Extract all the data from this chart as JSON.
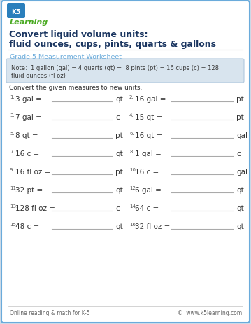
{
  "title_line1": "Convert liquid volume units:",
  "title_line2": "fluid ounces, cups, pints, quarts & gallons",
  "subtitle": "Grade 5 Measurement Worksheet",
  "note_line1": "Note:  1 gallon (gal) = 4 quarts (qt) =  8 pints (pt) = 16 cups (c) = 128",
  "note_line2": "fluid ounces (fl oz)",
  "instruction": "Convert the given measures to new units.",
  "problems": [
    {
      "num": "1.",
      "left": "3 gal =",
      "unit": "qt"
    },
    {
      "num": "2.",
      "left": "16 gal =",
      "unit": "pt"
    },
    {
      "num": "3.",
      "left": "7 gal =",
      "unit": "c"
    },
    {
      "num": "4.",
      "left": "15 qt =",
      "unit": "pt"
    },
    {
      "num": "5.",
      "left": "8 qt =",
      "unit": "pt"
    },
    {
      "num": "6.",
      "left": "16 qt =",
      "unit": "gal"
    },
    {
      "num": "7.",
      "left": "16 c =",
      "unit": "qt"
    },
    {
      "num": "8.",
      "left": "1 gal =",
      "unit": "c"
    },
    {
      "num": "9.",
      "left": "16 fl oz =",
      "unit": "pt"
    },
    {
      "num": "10.",
      "left": "16 c =",
      "unit": "gal"
    },
    {
      "num": "11.",
      "left": "32 pt =",
      "unit": "qt"
    },
    {
      "num": "12.",
      "left": "6 gal =",
      "unit": "qt"
    },
    {
      "num": "13.",
      "left": "128 fl oz =",
      "unit": "c"
    },
    {
      "num": "14.",
      "left": "64 c =",
      "unit": "qt"
    },
    {
      "num": "15.",
      "left": "48 c =",
      "unit": "qt"
    },
    {
      "num": "16.",
      "left": "32 fl oz =",
      "unit": "qt"
    }
  ],
  "footer_left": "Online reading & math for K-5",
  "footer_right": "©  www.k5learning.com",
  "page_bg": "#d0dce8",
  "content_bg": "#ffffff",
  "border_color": "#6aabdb",
  "title_color": "#1a3560",
  "subtitle_color": "#6aabdb",
  "note_bg": "#d8e4ee",
  "note_border": "#b0c8de",
  "note_color": "#3a3a3a",
  "problem_color": "#333333",
  "num_color": "#555555",
  "line_color": "#aaaaaa",
  "footer_color": "#666666",
  "logo_ks_bg": "#2a7fbc",
  "logo_learning_color": "#4aaa22"
}
